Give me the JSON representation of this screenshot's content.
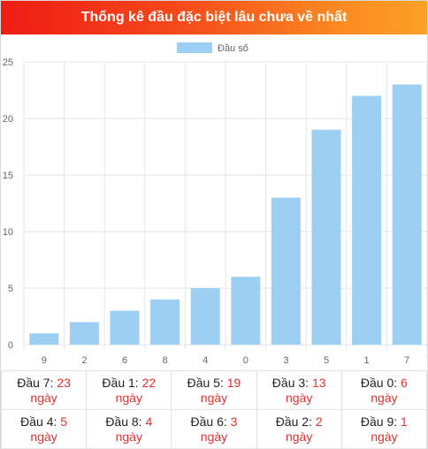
{
  "title": "Thống kê đầu đặc biệt lâu chưa về nhất",
  "chart_data": {
    "type": "bar",
    "categories": [
      "9",
      "2",
      "6",
      "8",
      "4",
      "0",
      "3",
      "5",
      "1",
      "7"
    ],
    "series": [
      {
        "name": "Đầu số",
        "values": [
          1,
          2,
          3,
          4,
          5,
          6,
          13,
          19,
          22,
          23
        ]
      }
    ],
    "ylim": [
      0,
      25
    ],
    "yticks": [
      0,
      5,
      10,
      15,
      20,
      25
    ],
    "grid": true,
    "legend_position": "top-center",
    "bar_color": "#9ccff2"
  },
  "stats": {
    "day_unit": "ngày",
    "rows": [
      [
        {
          "label": "Đầu 7:",
          "value": "23"
        },
        {
          "label": "Đầu 1:",
          "value": "22"
        },
        {
          "label": "Đầu 5:",
          "value": "19"
        },
        {
          "label": "Đầu 3:",
          "value": "13"
        },
        {
          "label": "Đầu 0:",
          "value": "6"
        }
      ],
      [
        {
          "label": "Đầu 4:",
          "value": "5"
        },
        {
          "label": "Đầu 8:",
          "value": "4"
        },
        {
          "label": "Đầu 6:",
          "value": "3"
        },
        {
          "label": "Đầu 2:",
          "value": "2"
        },
        {
          "label": "Đầu 9:",
          "value": "1"
        }
      ]
    ]
  }
}
